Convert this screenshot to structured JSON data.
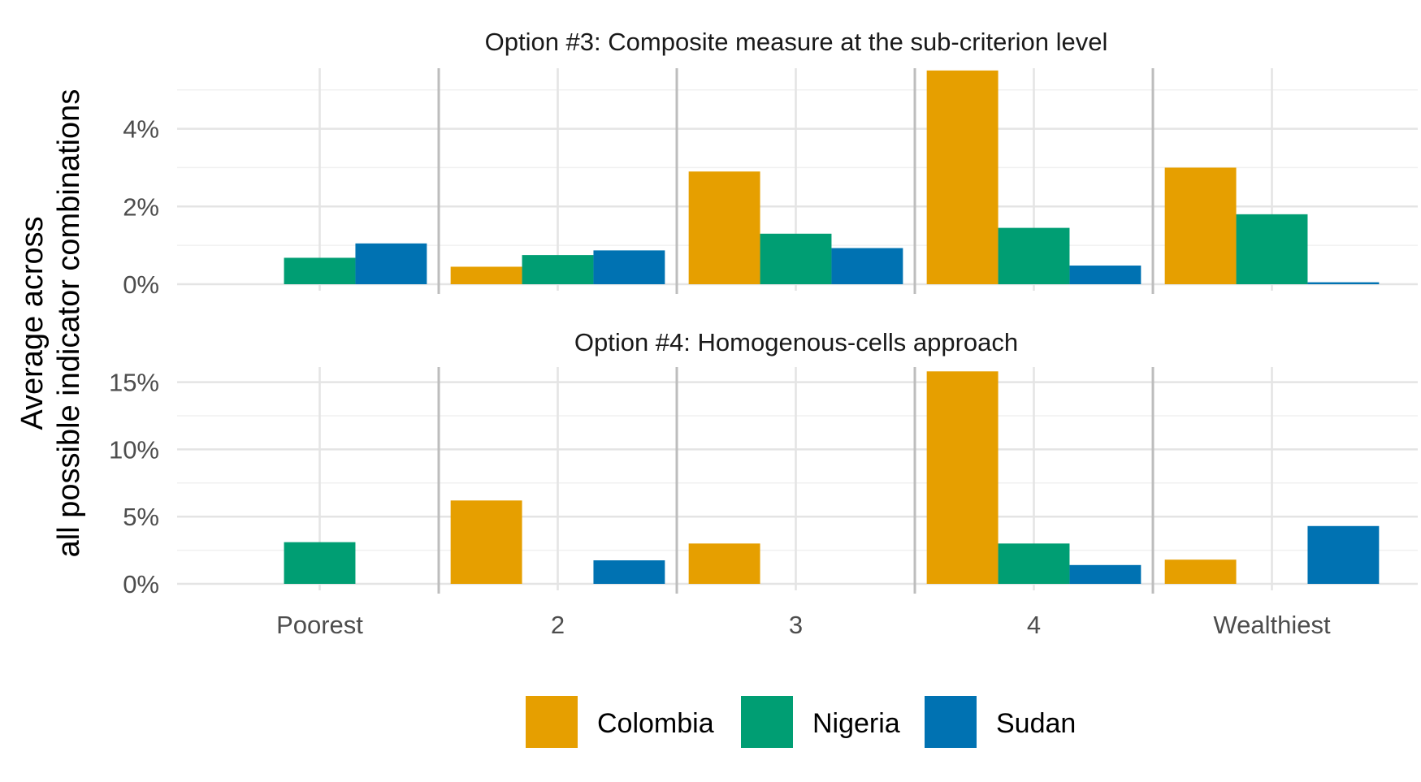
{
  "chart_data": {
    "type": "bar",
    "categories": [
      "Poorest",
      "2",
      "3",
      "4",
      "Wealthiest"
    ],
    "ylabel_lines": [
      "Average across",
      "all possible indicator combinations"
    ],
    "xlabel": "",
    "legend": {
      "placement": "bottom"
    },
    "grid": true,
    "series_colors": {
      "Colombia": "#E69F00",
      "Nigeria": "#009E73",
      "Sudan": "#0072B2"
    },
    "panels": [
      {
        "title": "Option #3: Composite measure at the sub-criterion level",
        "ylim": [
          0,
          5.6
        ],
        "yticks": [
          0,
          2,
          4
        ],
        "ytick_labels": [
          "0%",
          "2%",
          "4%"
        ],
        "series": [
          {
            "name": "Colombia",
            "values": [
              0,
              0.45,
              2.9,
              5.5,
              3.0
            ]
          },
          {
            "name": "Nigeria",
            "values": [
              0.68,
              0.75,
              1.3,
              1.45,
              1.8
            ]
          },
          {
            "name": "Sudan",
            "values": [
              1.05,
              0.87,
              0.93,
              0.48,
              0.05
            ]
          }
        ]
      },
      {
        "title": "Option #4: Homogenous-cells approach",
        "ylim": [
          0,
          16
        ],
        "yticks": [
          0,
          5,
          10,
          15
        ],
        "ytick_labels": [
          "0%",
          "5%",
          "10%",
          "15%"
        ],
        "series": [
          {
            "name": "Colombia",
            "values": [
              0,
              6.2,
              3.0,
              15.8,
              1.8
            ]
          },
          {
            "name": "Nigeria",
            "values": [
              3.1,
              0,
              0,
              3.0,
              0
            ]
          },
          {
            "name": "Sudan",
            "values": [
              0,
              1.75,
              0,
              1.4,
              4.3
            ]
          }
        ]
      }
    ]
  }
}
